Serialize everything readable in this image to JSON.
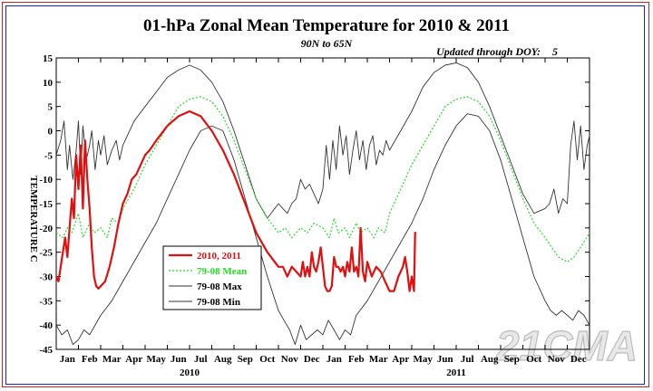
{
  "chart_data": {
    "type": "line",
    "title": "01-hPa Zonal Mean Temperature for 2010 & 2011",
    "subtitle": "90N to 65N",
    "updated_label": "Updated through DOY:",
    "updated_value": "5",
    "ylabel": "TEMPERATURE C",
    "ylim": [
      -45,
      15
    ],
    "yticks": [
      15,
      10,
      5,
      0,
      -5,
      -10,
      -15,
      -20,
      -25,
      -30,
      -35,
      -40,
      -45
    ],
    "xlim_months": [
      0,
      24
    ],
    "month_labels": [
      "Jan",
      "Feb",
      "Mar",
      "Apr",
      "May",
      "Jun",
      "Jul",
      "Aug",
      "Sep",
      "Oct",
      "Nov",
      "Dec",
      "Jan",
      "Feb",
      "Mar",
      "Apr",
      "May",
      "Jun",
      "Jul",
      "Aug",
      "Sep",
      "Oct",
      "Nov",
      "Dec"
    ],
    "year_labels": [
      {
        "label": "2010",
        "month": 6
      },
      {
        "label": "2011",
        "month": 18
      }
    ],
    "watermark": "21CMA",
    "colors": {
      "actual": "#e01010",
      "mean": "#22dd22",
      "max": "#333333",
      "min": "#333333",
      "axis": "#000000"
    },
    "series": [
      {
        "name": "2010, 2011",
        "style": "solid-red",
        "x": [
          0.0,
          0.1,
          0.2,
          0.3,
          0.4,
          0.5,
          0.6,
          0.7,
          0.8,
          0.9,
          1.0,
          1.1,
          1.2,
          1.3,
          1.4,
          1.5,
          1.6,
          1.7,
          1.8,
          1.9,
          2.0,
          2.2,
          2.4,
          2.6,
          2.8,
          3.0,
          3.2,
          3.4,
          3.6,
          3.8,
          4.0,
          4.2,
          4.5,
          5.0,
          5.5,
          6.0,
          6.5,
          7.0,
          7.5,
          8.0,
          8.5,
          9.0,
          9.5,
          10.0,
          10.2,
          10.4,
          10.6,
          10.8,
          11.0,
          11.1,
          11.2,
          11.3,
          11.4,
          11.5,
          11.6,
          11.7,
          11.8,
          11.9,
          12.0,
          12.1,
          12.2,
          12.3,
          12.4,
          12.5,
          12.6,
          12.7,
          12.8,
          12.9,
          13.0,
          13.1,
          13.2,
          13.3,
          13.4,
          13.5,
          13.6,
          13.7,
          13.8,
          13.9,
          14.0,
          14.2,
          14.4,
          14.6,
          14.8,
          15.0,
          15.2,
          15.4,
          15.6,
          15.7,
          15.8,
          15.9,
          16.0,
          16.1,
          16.15,
          16.2
        ],
        "values": [
          -30,
          -31,
          -28,
          -25,
          -22,
          -26,
          -20,
          -14,
          -18,
          -5,
          -12,
          -3,
          -16,
          -2,
          -10,
          -16,
          -24,
          -30,
          -32,
          -32.5,
          -32,
          -31,
          -28,
          -24,
          -19,
          -15,
          -13,
          -10,
          -9,
          -7,
          -5,
          -4,
          -2,
          1,
          3,
          4,
          3,
          0,
          -4,
          -9,
          -15,
          -21,
          -25,
          -28,
          -28,
          -30,
          -28,
          -29,
          -30,
          -27,
          -30,
          -28,
          -30,
          -25,
          -28,
          -29,
          -27,
          -24,
          -28,
          -32,
          -33,
          -33,
          -32,
          -26,
          -28,
          -28,
          -29,
          -28,
          -30,
          -27,
          -29,
          -24,
          -29,
          -28,
          -30,
          -20,
          -29,
          -31,
          -27,
          -30,
          -28,
          -29,
          -31,
          -33,
          -33,
          -30,
          -28,
          -26,
          -29,
          -33,
          -30,
          -33,
          -21,
          -21
        ]
      },
      {
        "name": "79-08 Mean",
        "style": "dotted-green",
        "x": [
          0.0,
          0.3,
          0.5,
          0.7,
          1.0,
          1.2,
          1.5,
          1.7,
          2.0,
          2.3,
          2.5,
          2.8,
          3.0,
          3.5,
          4.0,
          4.5,
          5.0,
          5.5,
          6.0,
          6.5,
          7.0,
          7.5,
          8.0,
          8.5,
          9.0,
          9.5,
          10.0,
          10.3,
          10.6,
          11.0,
          11.3,
          11.6,
          12.0,
          12.3,
          12.5,
          12.7,
          13.0,
          13.2,
          13.5,
          13.7,
          14.0,
          14.3,
          14.5,
          14.8,
          15.0,
          15.5,
          16.0,
          16.5,
          17.0,
          17.5,
          18.0,
          18.5,
          19.0,
          19.5,
          20.0,
          20.5,
          21.0,
          21.5,
          22.0,
          22.3,
          22.6,
          23.0,
          23.3,
          23.6,
          24.0
        ],
        "values": [
          -21,
          -22,
          -20,
          -21,
          -17,
          -22,
          -19,
          -21,
          -20,
          -22,
          -18,
          -19,
          -16,
          -12,
          -7,
          -3,
          1,
          5,
          6.5,
          7,
          6,
          3,
          -2,
          -8,
          -14,
          -18,
          -21,
          -20,
          -22,
          -20,
          -21,
          -19,
          -20,
          -22,
          -18,
          -21,
          -20,
          -22,
          -19,
          -21,
          -20,
          -22,
          -20,
          -21,
          -17,
          -12,
          -7,
          -3,
          1,
          5,
          6.5,
          7,
          6,
          3,
          -2,
          -8,
          -14,
          -19,
          -22,
          -24,
          -26,
          -27,
          -26,
          -24,
          -21
        ]
      },
      {
        "name": "79-08 Max",
        "style": "solid-thin",
        "x": [
          0.0,
          0.2,
          0.35,
          0.5,
          0.6,
          0.75,
          0.9,
          1.0,
          1.1,
          1.2,
          1.35,
          1.5,
          1.6,
          1.75,
          1.9,
          2.0,
          2.15,
          2.3,
          2.5,
          2.7,
          2.85,
          3.0,
          3.2,
          3.5,
          4.0,
          4.5,
          5.0,
          5.5,
          6.0,
          6.5,
          7.0,
          7.5,
          8.0,
          8.5,
          9.0,
          9.5,
          10.0,
          10.2,
          10.4,
          10.6,
          10.8,
          11.0,
          11.2,
          11.4,
          11.6,
          11.8,
          12.0,
          12.15,
          12.3,
          12.45,
          12.6,
          12.75,
          12.9,
          13.05,
          13.2,
          13.35,
          13.5,
          13.65,
          13.8,
          13.95,
          14.1,
          14.25,
          14.4,
          14.55,
          14.7,
          14.85,
          15.0,
          15.5,
          16.0,
          16.5,
          17.0,
          17.5,
          18.0,
          18.5,
          19.0,
          19.5,
          20.0,
          20.5,
          21.0,
          21.5,
          22.0,
          22.2,
          22.4,
          22.6,
          22.8,
          23.0,
          23.15,
          23.3,
          23.45,
          23.6,
          23.75,
          23.9,
          24.0
        ],
        "values": [
          -5,
          -2,
          2,
          -8,
          -3,
          -10,
          -4,
          2,
          -9,
          1,
          -6,
          -3,
          0,
          -8,
          -2,
          -5,
          -1,
          -7,
          -4,
          -2,
          -6,
          -3,
          -1,
          2,
          5,
          8,
          11,
          12.5,
          13.5,
          12.5,
          10,
          6,
          0,
          -7,
          -14,
          -18,
          -15,
          -16,
          -17,
          -15,
          -14,
          -10,
          -12,
          -11,
          -13,
          -15,
          -12,
          -3,
          -10,
          -2,
          -8,
          1,
          -5,
          -1,
          -9,
          -4,
          0,
          -6,
          -2,
          -8,
          -3,
          -1,
          -7,
          -4,
          -5,
          -2,
          -4,
          0,
          4,
          9,
          12,
          13.5,
          14,
          13,
          10,
          5,
          -1,
          -7,
          -13,
          -17,
          -16,
          -15,
          -12,
          -17,
          -14,
          -15,
          -3,
          2,
          -6,
          1,
          -8,
          -3,
          -1
        ]
      },
      {
        "name": "79-08 Min",
        "style": "solid-thin",
        "x": [
          0.0,
          0.25,
          0.5,
          0.75,
          1.0,
          1.25,
          1.5,
          2.0,
          2.5,
          3.0,
          3.5,
          4.0,
          4.5,
          5.0,
          5.5,
          6.0,
          6.5,
          7.0,
          7.5,
          8.0,
          8.5,
          9.0,
          9.5,
          10.0,
          10.25,
          10.5,
          10.75,
          11.0,
          11.25,
          11.5,
          11.75,
          12.0,
          12.25,
          12.5,
          12.75,
          13.0,
          13.25,
          13.5,
          14.0,
          14.5,
          15.0,
          15.5,
          16.0,
          16.5,
          17.0,
          17.5,
          18.0,
          18.5,
          19.0,
          19.5,
          20.0,
          20.5,
          21.0,
          21.5,
          22.0,
          22.25,
          22.5,
          22.75,
          23.0,
          23.25,
          23.5,
          23.75,
          24.0
        ],
        "values": [
          -40,
          -42,
          -41,
          -44,
          -43,
          -41,
          -42,
          -38,
          -35,
          -31,
          -27,
          -23,
          -19,
          -14,
          -9,
          -4,
          0,
          1,
          0,
          -6,
          -14,
          -22,
          -30,
          -37,
          -39,
          -41,
          -44,
          -40,
          -43,
          -42,
          -41,
          -42,
          -39,
          -41,
          -43,
          -41,
          -42,
          -38,
          -35,
          -31,
          -27,
          -23,
          -19,
          -14,
          -8,
          -3,
          1,
          3.5,
          3,
          0,
          -6,
          -14,
          -22,
          -30,
          -35,
          -37,
          -38,
          -37,
          -38,
          -39,
          -37,
          -38,
          -40
        ]
      }
    ],
    "legend": {
      "position": "lower-left",
      "entries": [
        {
          "label": "2010, 2011",
          "style": "solid-red"
        },
        {
          "label": "79-08 Mean",
          "style": "dotted-green"
        },
        {
          "label": "79-08 Max",
          "style": "solid-thin"
        },
        {
          "label": "79-08 Min",
          "style": "solid-thin"
        }
      ]
    }
  }
}
